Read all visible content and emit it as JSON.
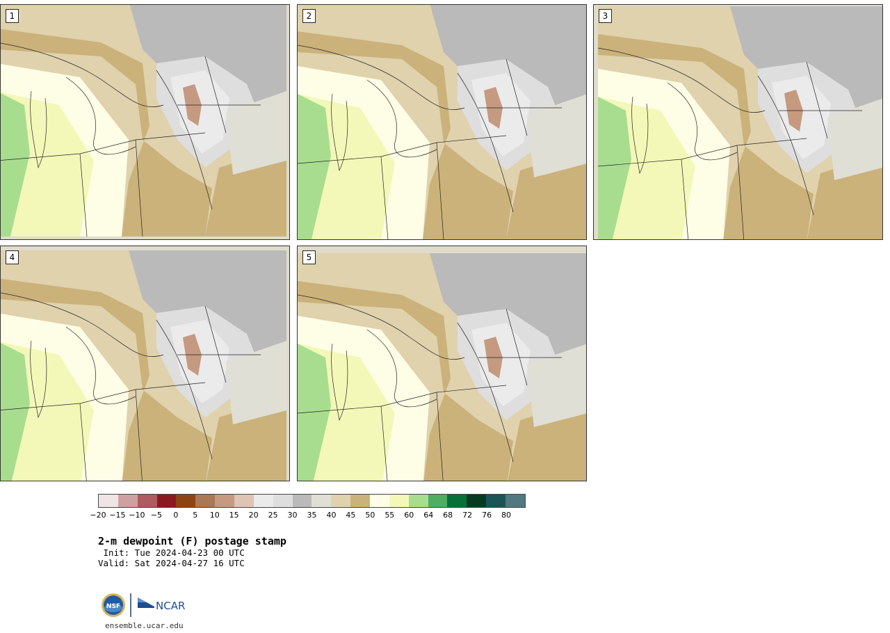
{
  "panels": [
    {
      "label": "1"
    },
    {
      "label": "2"
    },
    {
      "label": "3"
    },
    {
      "label": "4"
    },
    {
      "label": "5"
    }
  ],
  "colorbar": {
    "colors": [
      "#efe5e5",
      "#cfa0a2",
      "#ad5c5f",
      "#8b1a1f",
      "#8d4414",
      "#ab7855",
      "#c59a80",
      "#dfc3b5",
      "#ebebeb",
      "#dedede",
      "#bababa",
      "#dfdfd5",
      "#dfd2ad",
      "#cbb27a",
      "#fefee6",
      "#f3f8b8",
      "#a8dd8f",
      "#4fae62",
      "#08713a",
      "#063a21",
      "#1b5457",
      "#52797f"
    ],
    "tick_labels": [
      "−20",
      "−15",
      "−10",
      "−5",
      "0",
      "5",
      "10",
      "15",
      "20",
      "25",
      "30",
      "35",
      "40",
      "45",
      "50",
      "55",
      "60",
      "64",
      "68",
      "72",
      "76",
      "80"
    ]
  },
  "title": "2-m dewpoint (F) postage stamp",
  "init": " Init: Tue 2024-04-23 00 UTC",
  "valid": "Valid: Sat 2024-04-27 16 UTC",
  "logo": {
    "nsf_text": "NSF",
    "ncar_text": "NCAR"
  },
  "url": "ensemble.ucar.edu"
}
